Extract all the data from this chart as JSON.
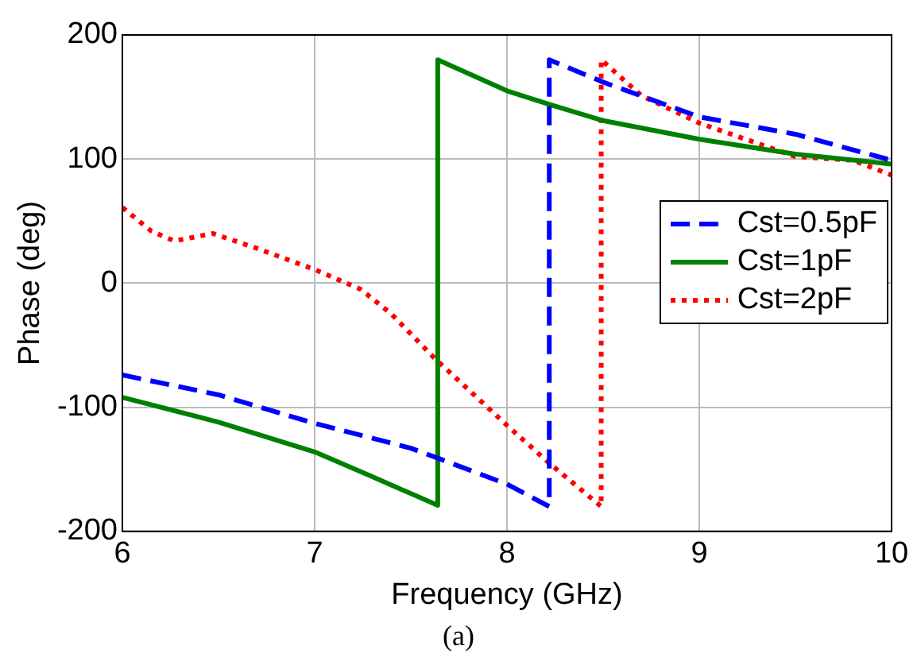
{
  "chart_data": {
    "type": "line",
    "xlabel": "Frequency (GHz)",
    "ylabel": "Phase (deg)",
    "annotations": [
      "(a)"
    ],
    "xlim": [
      6,
      10
    ],
    "xticks": [
      6,
      7,
      8,
      9,
      10
    ],
    "ylim": [
      -200,
      200
    ],
    "yticks": [
      -200,
      -100,
      0,
      100,
      200
    ],
    "grid": true,
    "legend": "right",
    "marker": "none",
    "series": [
      {
        "name": "Cst=0.5pF",
        "color": "#0000ff",
        "line_style": "dashed",
        "x": [
          6,
          6.5,
          7,
          7.5,
          7.64,
          8,
          8.22,
          8.22,
          8.5,
          9,
          9.5,
          10
        ],
        "values": [
          -74,
          -90,
          -113,
          -133,
          -141,
          -162,
          -180,
          180,
          162,
          134,
          120,
          99
        ]
      },
      {
        "name": "Cst=1pF",
        "color": "#008000",
        "line_style": "solid",
        "x": [
          6,
          6.5,
          7,
          7.3,
          7.64,
          7.64,
          8,
          8.22,
          8.5,
          9,
          9.5,
          10
        ],
        "values": [
          -92,
          -112,
          -136,
          -156,
          -179,
          180,
          155,
          144,
          131,
          116,
          104,
          96
        ]
      },
      {
        "name": "Cst=2pF",
        "color": "#ff0000",
        "line_style": "dotted",
        "x": [
          6,
          6.15,
          6.27,
          6.47,
          6.7,
          7,
          7.24,
          7.4,
          7.62,
          8.01,
          8.22,
          8.49,
          8.49,
          8.7,
          9,
          9.5,
          9.8,
          10
        ],
        "values": [
          61,
          42,
          34,
          40,
          28,
          11,
          -5,
          -25,
          -60,
          -116,
          -145,
          -180,
          180,
          151,
          129,
          102,
          99,
          87
        ]
      }
    ]
  }
}
